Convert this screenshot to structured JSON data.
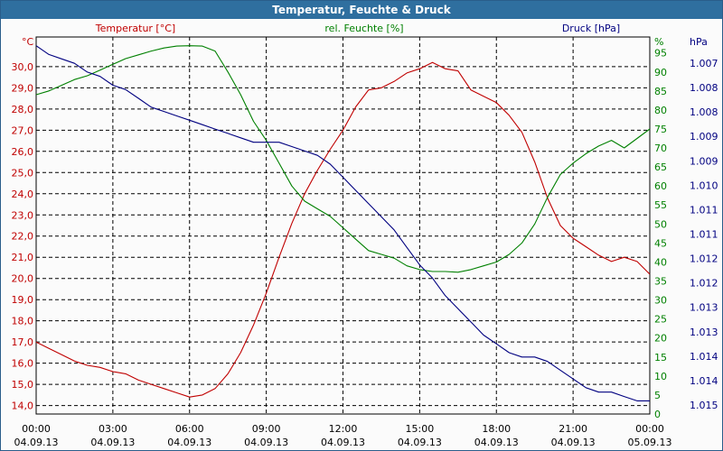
{
  "window_title": "Temperatur, Feuchte & Druck",
  "chart_data": {
    "type": "line",
    "grid": true,
    "xlim": [
      "04.09.13 00:00",
      "05.09.13 00:00"
    ],
    "x_ticks": [
      {
        "time": "00:00",
        "date": "04.09.13"
      },
      {
        "time": "03:00",
        "date": "04.09.13"
      },
      {
        "time": "06:00",
        "date": "04.09.13"
      },
      {
        "time": "09:00",
        "date": "04.09.13"
      },
      {
        "time": "12:00",
        "date": "04.09.13"
      },
      {
        "time": "15:00",
        "date": "04.09.13"
      },
      {
        "time": "18:00",
        "date": "04.09.13"
      },
      {
        "time": "21:00",
        "date": "04.09.13"
      },
      {
        "time": "00:00",
        "date": "05.09.13"
      }
    ],
    "axes": {
      "temperature": {
        "label": "Temperatur [°C]",
        "unit": "°C",
        "ylim": [
          13.6,
          31.4
        ],
        "ticks": [
          "14,0",
          "15,0",
          "16,0",
          "17,0",
          "18,0",
          "19,0",
          "20,0",
          "21,0",
          "22,0",
          "23,0",
          "24,0",
          "25,0",
          "26,0",
          "27,0",
          "28,0",
          "29,0",
          "30,0"
        ],
        "color": "#c00000"
      },
      "humidity": {
        "label": "rel. Feuchte [%]",
        "unit": "%",
        "ylim": [
          0,
          99.2
        ],
        "ticks": [
          "0",
          "5",
          "10",
          "15",
          "20",
          "25",
          "30",
          "35",
          "40",
          "45",
          "50",
          "55",
          "60",
          "65",
          "70",
          "75",
          "80",
          "85",
          "90",
          "95"
        ],
        "color": "#008000"
      },
      "pressure": {
        "label": "Druck [hPa]",
        "unit": "hPa",
        "ylim": [
          1006.8,
          1015.4
        ],
        "ticks": [
          "1.007",
          "1.008",
          "1.008",
          "1.009",
          "1.009",
          "1.010",
          "1.011",
          "1.011",
          "1.012",
          "1.012",
          "1.013",
          "1.013",
          "1.014",
          "1.014",
          "1.015"
        ],
        "color": "#000080"
      }
    },
    "series": [
      {
        "name": "Temperatur [°C]",
        "axis": "temperature",
        "color": "#c00000",
        "points": [
          [
            0,
            17.0
          ],
          [
            0.5,
            16.7
          ],
          [
            1,
            16.4
          ],
          [
            1.5,
            16.1
          ],
          [
            2,
            15.9
          ],
          [
            2.5,
            15.8
          ],
          [
            3,
            15.6
          ],
          [
            3.5,
            15.5
          ],
          [
            4,
            15.2
          ],
          [
            4.5,
            15.0
          ],
          [
            5,
            14.8
          ],
          [
            5.5,
            14.6
          ],
          [
            6,
            14.4
          ],
          [
            6.5,
            14.5
          ],
          [
            7,
            14.8
          ],
          [
            7.5,
            15.5
          ],
          [
            8,
            16.5
          ],
          [
            8.5,
            17.8
          ],
          [
            9,
            19.3
          ],
          [
            9.5,
            21.0
          ],
          [
            10,
            22.6
          ],
          [
            10.5,
            24.0
          ],
          [
            11,
            25.1
          ],
          [
            11.5,
            26.1
          ],
          [
            12,
            27.0
          ],
          [
            12.5,
            28.1
          ],
          [
            13,
            28.9
          ],
          [
            13.5,
            29.0
          ],
          [
            14,
            29.3
          ],
          [
            14.5,
            29.7
          ],
          [
            15,
            29.9
          ],
          [
            15.5,
            30.2
          ],
          [
            16,
            29.9
          ],
          [
            16.5,
            29.8
          ],
          [
            17,
            28.9
          ],
          [
            17.5,
            28.6
          ],
          [
            18,
            28.3
          ],
          [
            18.5,
            27.7
          ],
          [
            19,
            26.9
          ],
          [
            19.5,
            25.5
          ],
          [
            20,
            23.8
          ],
          [
            20.5,
            22.5
          ],
          [
            21,
            21.9
          ],
          [
            21.5,
            21.5
          ],
          [
            22,
            21.1
          ],
          [
            22.5,
            20.8
          ],
          [
            23,
            21.0
          ],
          [
            23.5,
            20.8
          ],
          [
            24,
            20.2
          ]
        ]
      },
      {
        "name": "rel. Feuchte [%]",
        "axis": "humidity",
        "color": "#008000",
        "points": [
          [
            0,
            84
          ],
          [
            0.5,
            85
          ],
          [
            1,
            86.5
          ],
          [
            1.5,
            88
          ],
          [
            2,
            89
          ],
          [
            2.5,
            90.5
          ],
          [
            3,
            92
          ],
          [
            3.5,
            93.5
          ],
          [
            4,
            94.5
          ],
          [
            4.5,
            95.5
          ],
          [
            5,
            96.3
          ],
          [
            5.5,
            96.8
          ],
          [
            6,
            96.9
          ],
          [
            6.5,
            96.8
          ],
          [
            7,
            95.5
          ],
          [
            7.5,
            90
          ],
          [
            8,
            84
          ],
          [
            8.5,
            77
          ],
          [
            9,
            72
          ],
          [
            9.5,
            66
          ],
          [
            10,
            60
          ],
          [
            10.5,
            56
          ],
          [
            11,
            54
          ],
          [
            11.5,
            52
          ],
          [
            12,
            49
          ],
          [
            12.5,
            46
          ],
          [
            13,
            43
          ],
          [
            13.5,
            42
          ],
          [
            14,
            41
          ],
          [
            14.5,
            39
          ],
          [
            15,
            38
          ],
          [
            15.5,
            37.5
          ],
          [
            16,
            37.5
          ],
          [
            16.5,
            37.3
          ],
          [
            17,
            38
          ],
          [
            17.5,
            39
          ],
          [
            18,
            40
          ],
          [
            18.5,
            42
          ],
          [
            19,
            45
          ],
          [
            19.5,
            50
          ],
          [
            20,
            57
          ],
          [
            20.5,
            63
          ],
          [
            21,
            66
          ],
          [
            21.5,
            68.5
          ],
          [
            22,
            70.5
          ],
          [
            22.5,
            72
          ],
          [
            23,
            70
          ],
          [
            23.5,
            72.5
          ],
          [
            24,
            75
          ]
        ]
      },
      {
        "name": "Druck [hPa]",
        "axis": "pressure",
        "color": "#000080",
        "points": [
          [
            0,
            1015.2
          ],
          [
            0.5,
            1015.0
          ],
          [
            1,
            1014.9
          ],
          [
            1.5,
            1014.8
          ],
          [
            2,
            1014.6
          ],
          [
            2.5,
            1014.5
          ],
          [
            3,
            1014.3
          ],
          [
            3.5,
            1014.2
          ],
          [
            4,
            1014.0
          ],
          [
            4.5,
            1013.8
          ],
          [
            5,
            1013.7
          ],
          [
            5.5,
            1013.6
          ],
          [
            6,
            1013.5
          ],
          [
            6.5,
            1013.4
          ],
          [
            7,
            1013.3
          ],
          [
            7.5,
            1013.2
          ],
          [
            8,
            1013.1
          ],
          [
            8.5,
            1013.0
          ],
          [
            9,
            1013.0
          ],
          [
            9.5,
            1013.0
          ],
          [
            10,
            1012.9
          ],
          [
            10.5,
            1012.8
          ],
          [
            11,
            1012.7
          ],
          [
            11.5,
            1012.5
          ],
          [
            12,
            1012.2
          ],
          [
            12.5,
            1011.9
          ],
          [
            13,
            1011.6
          ],
          [
            13.5,
            1011.3
          ],
          [
            14,
            1011.0
          ],
          [
            14.5,
            1010.6
          ],
          [
            15,
            1010.2
          ],
          [
            15.5,
            1009.9
          ],
          [
            16,
            1009.5
          ],
          [
            16.5,
            1009.2
          ],
          [
            17,
            1008.9
          ],
          [
            17.5,
            1008.6
          ],
          [
            18,
            1008.4
          ],
          [
            18.5,
            1008.2
          ],
          [
            19,
            1008.1
          ],
          [
            19.5,
            1008.1
          ],
          [
            20,
            1008.0
          ],
          [
            20.5,
            1007.8
          ],
          [
            21,
            1007.6
          ],
          [
            21.5,
            1007.4
          ],
          [
            22,
            1007.3
          ],
          [
            22.5,
            1007.3
          ],
          [
            23,
            1007.2
          ],
          [
            23.5,
            1007.1
          ],
          [
            24,
            1007.1
          ]
        ]
      }
    ]
  }
}
